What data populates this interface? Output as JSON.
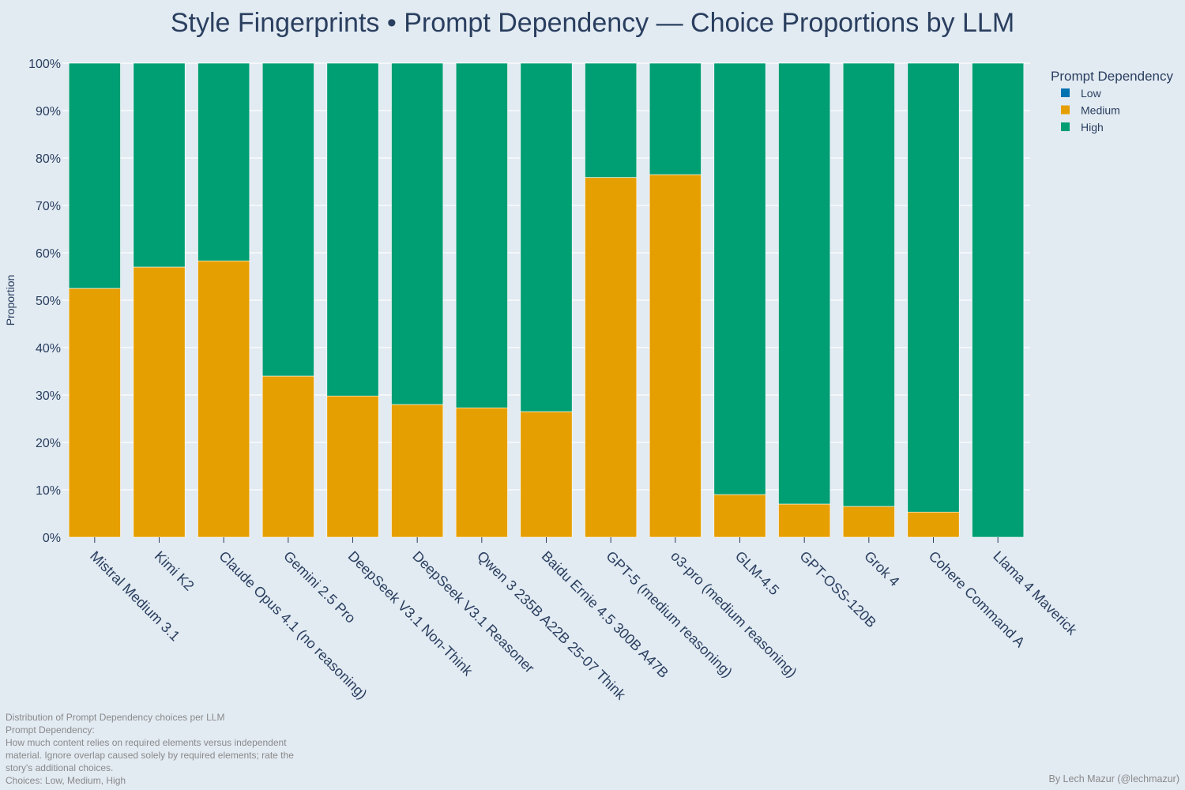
{
  "chart_data": {
    "type": "bar",
    "stacked": true,
    "title": "Style Fingerprints • Prompt Dependency — Choice Proportions by LLM",
    "ylabel": "Proportion",
    "ylim": [
      0,
      1
    ],
    "y_ticks": [
      "0%",
      "10%",
      "20%",
      "30%",
      "40%",
      "50%",
      "60%",
      "70%",
      "80%",
      "90%",
      "100%"
    ],
    "grid": true,
    "legend": {
      "title": "Prompt Dependency",
      "position": "top-right"
    },
    "categories": [
      "Mistral Medium 3.1",
      "Kimi K2",
      "Claude Opus 4.1 (no reasoning)",
      "Gemini 2.5 Pro",
      "DeepSeek V3.1 Non-Think",
      "DeepSeek V3.1 Reasoner",
      "Qwen 3 235B A22B 25-07 Think",
      "Baidu Ernie 4.5 300B A47B",
      "GPT-5 (medium reasoning)",
      "o3-pro (medium reasoning)",
      "GLM-4.5",
      "GPT-OSS-120B",
      "Grok 4",
      "Cohere Command A",
      "Llama 4 Maverick"
    ],
    "series": [
      {
        "name": "Low",
        "color": "#0072b2",
        "values": [
          0,
          0,
          0,
          0,
          0,
          0,
          0,
          0,
          0,
          0,
          0,
          0,
          0,
          0,
          0
        ]
      },
      {
        "name": "Medium",
        "color": "#e69f00",
        "values": [
          0.525,
          0.57,
          0.583,
          0.34,
          0.298,
          0.28,
          0.273,
          0.265,
          0.759,
          0.765,
          0.09,
          0.07,
          0.065,
          0.053,
          0.0
        ]
      },
      {
        "name": "High",
        "color": "#009e73",
        "values": [
          0.475,
          0.43,
          0.417,
          0.66,
          0.702,
          0.72,
          0.727,
          0.735,
          0.241,
          0.235,
          0.91,
          0.93,
          0.935,
          0.947,
          1.0
        ]
      }
    ]
  },
  "footnote": {
    "lines": [
      "Distribution of Prompt Dependency choices per LLM",
      "Prompt Dependency:",
      "How much content relies on required elements versus independent",
      "material. Ignore overlap caused solely by required elements; rate the",
      "story's additional choices.",
      "Choices: Low, Medium, High"
    ]
  },
  "credit": "By Lech Mazur (@lechmazur)"
}
